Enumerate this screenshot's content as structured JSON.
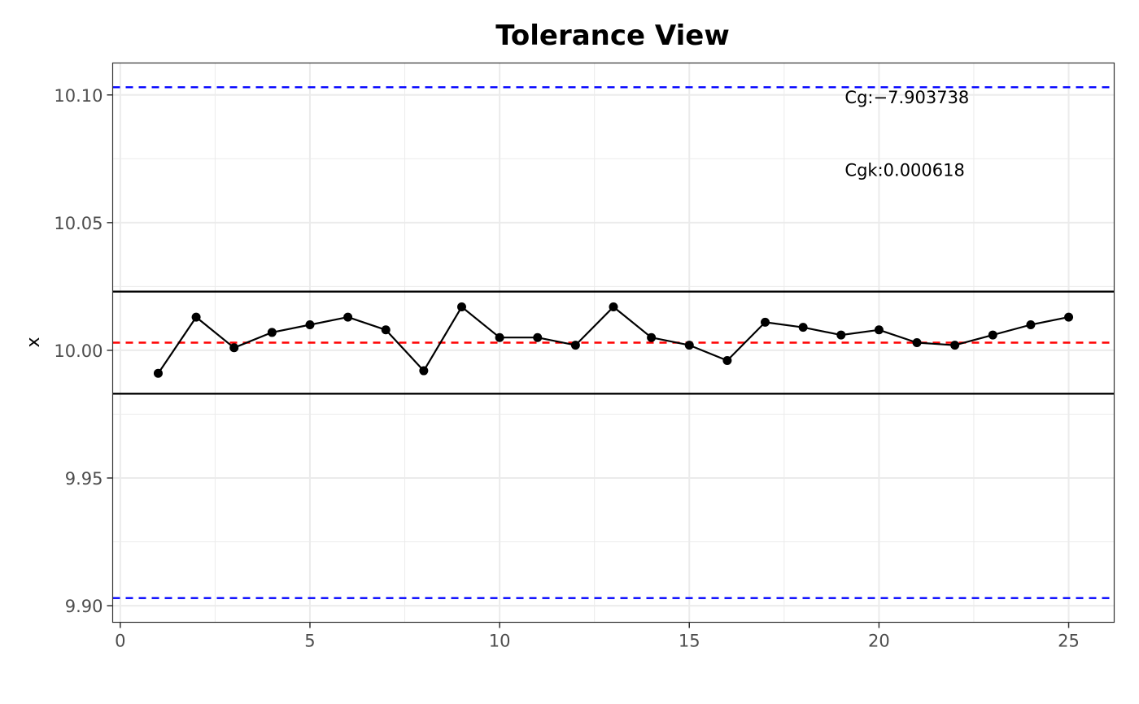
{
  "chart_data": {
    "type": "line",
    "title": "Tolerance View",
    "xlabel": "",
    "ylabel": "x",
    "xlim": [
      -0.2,
      26.2
    ],
    "ylim": [
      9.8935,
      10.1125
    ],
    "x_ticks": [
      0,
      5,
      10,
      15,
      20,
      25
    ],
    "x_tick_labels": [
      "0",
      "5",
      "10",
      "15",
      "20",
      "25"
    ],
    "y_ticks": [
      9.9,
      9.95,
      10.0,
      10.05,
      10.1
    ],
    "y_tick_labels": [
      "9.90",
      "9.95",
      "10.00",
      "10.05",
      "10.10"
    ],
    "grid": true,
    "series": [
      {
        "x": [
          1,
          2,
          3,
          4,
          5,
          6,
          7,
          8,
          9,
          10,
          11,
          12,
          13,
          14,
          15,
          16,
          17,
          18,
          19,
          20,
          21,
          22,
          23,
          24,
          25
        ],
        "values": [
          9.991,
          10.013,
          10.001,
          10.007,
          10.01,
          10.013,
          10.008,
          9.992,
          10.017,
          10.005,
          10.005,
          10.002,
          10.017,
          10.005,
          10.002,
          9.996,
          10.011,
          10.009,
          10.006,
          10.008,
          10.003,
          10.002,
          10.006,
          10.01,
          10.013
        ],
        "color": "#000000"
      }
    ],
    "reference_lines": [
      {
        "y": 10.103,
        "color": "#0000ff",
        "style": "dashed"
      },
      {
        "y": 9.903,
        "color": "#0000ff",
        "style": "dashed"
      },
      {
        "y": 10.003,
        "color": "#ff0000",
        "style": "dashed"
      },
      {
        "y": 10.023,
        "color": "#000000",
        "style": "solid"
      },
      {
        "y": 9.983,
        "color": "#000000",
        "style": "solid"
      }
    ],
    "annotations": [
      {
        "text": "Cg:−7.903738",
        "x": 19.1,
        "y": 10.1
      },
      {
        "text": "Cgk:0.000618",
        "x": 19.1,
        "y": 10.0715
      }
    ]
  }
}
